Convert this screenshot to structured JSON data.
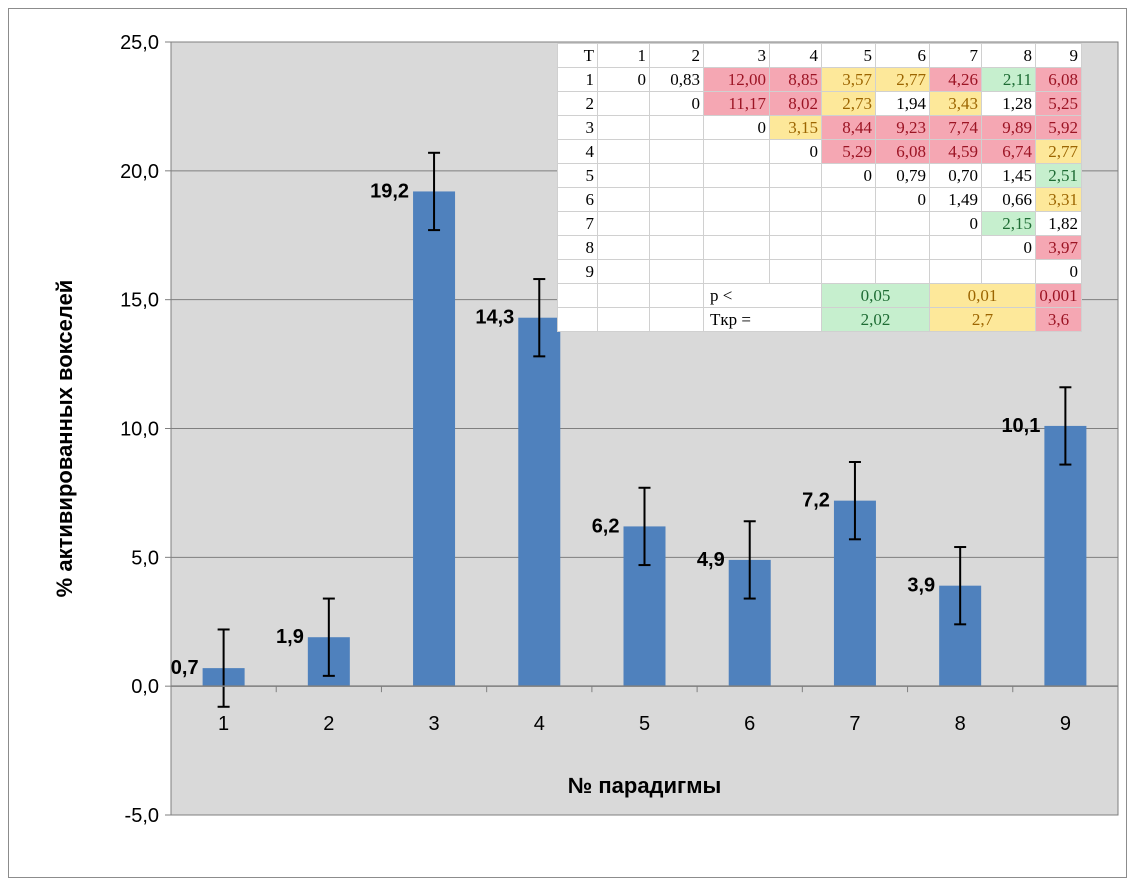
{
  "chart_data": {
    "type": "bar",
    "xlabel": "№ парадигмы",
    "ylabel": "% активированных вокселей",
    "ylim": [
      -5,
      25
    ],
    "yticks": [
      "-5,0",
      "0,0",
      "5,0",
      "10,0",
      "15,0",
      "20,0",
      "25,0"
    ],
    "ytick_values": [
      -5,
      0,
      5,
      10,
      15,
      20,
      25
    ],
    "categories": [
      "1",
      "2",
      "3",
      "4",
      "5",
      "6",
      "7",
      "8",
      "9"
    ],
    "values": [
      0.7,
      1.9,
      19.2,
      14.3,
      6.2,
      4.9,
      7.2,
      3.9,
      10.1
    ],
    "value_labels": [
      "0,7",
      "1,9",
      "19,2",
      "14,3",
      "6,2",
      "4,9",
      "7,2",
      "3,9",
      "10,1"
    ],
    "error": [
      1.5,
      1.5,
      1.5,
      1.5,
      1.5,
      1.5,
      1.5,
      1.5,
      1.5
    ],
    "bar_color": "#4f81bd",
    "plot_background": "#d9d9d9",
    "grid": true
  },
  "table": {
    "header": [
      "T",
      "1",
      "2",
      "3",
      "4",
      "5",
      "6",
      "7",
      "8",
      "9"
    ],
    "rows": [
      [
        "1",
        "0",
        "0,83",
        "12,00",
        "8,85",
        "3,57",
        "2,77",
        "4,26",
        "2,11",
        "6,08"
      ],
      [
        "2",
        "",
        "0",
        "11,17",
        "8,02",
        "2,73",
        "1,94",
        "3,43",
        "1,28",
        "5,25"
      ],
      [
        "3",
        "",
        "",
        "0",
        "3,15",
        "8,44",
        "9,23",
        "7,74",
        "9,89",
        "5,92"
      ],
      [
        "4",
        "",
        "",
        "",
        "0",
        "5,29",
        "6,08",
        "4,59",
        "6,74",
        "2,77"
      ],
      [
        "5",
        "",
        "",
        "",
        "",
        "0",
        "0,79",
        "0,70",
        "1,45",
        "2,51"
      ],
      [
        "6",
        "",
        "",
        "",
        "",
        "",
        "0",
        "1,49",
        "0,66",
        "3,31"
      ],
      [
        "7",
        "",
        "",
        "",
        "",
        "",
        "",
        "0",
        "2,15",
        "1,82"
      ],
      [
        "8",
        "",
        "",
        "",
        "",
        "",
        "",
        "",
        "0",
        "3,97"
      ],
      [
        "9",
        "",
        "",
        "",
        "",
        "",
        "",
        "",
        "",
        "0"
      ]
    ],
    "legend": {
      "p_label": "p <",
      "t_label": "Tкр =",
      "p_values": [
        "0,05",
        "0,01",
        "0,001"
      ],
      "t_values": [
        "2,02",
        "2,7",
        "3,6"
      ]
    },
    "colors": {
      "red_bg": "#f5a7b3",
      "red_fg": "#9c1424",
      "yellow_bg": "#fde89a",
      "yellow_fg": "#9c6500",
      "green_bg": "#c6efce",
      "green_fg": "#1e6c34"
    }
  }
}
